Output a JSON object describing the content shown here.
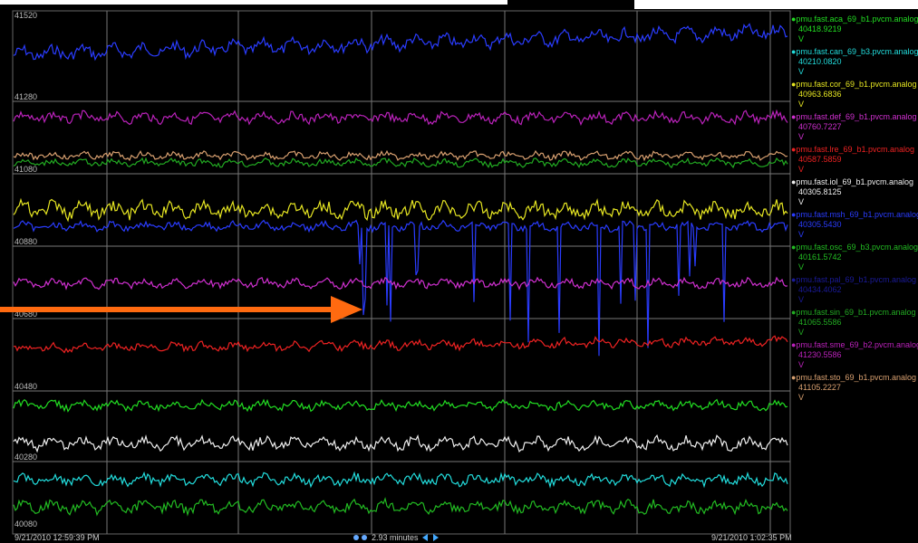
{
  "screen": {
    "y_axis_labels": [
      "41520",
      "41280",
      "41080",
      "40880",
      "40680",
      "40480",
      "40280",
      "40080"
    ],
    "legend": [
      {
        "name": "pmu.fast.aca_69_b1.pvcm.analog",
        "value": "40418.9219",
        "unit": "V",
        "color": "#22dd22"
      },
      {
        "name": "pmu.fast.can_69_b3.pvcm.analog",
        "value": "40210.0820",
        "unit": "V",
        "color": "#22dddd"
      },
      {
        "name": "pmu.fast.cor_69_b1.pvcm.analog",
        "value": "40963.6836",
        "unit": "V",
        "color": "#e6e622"
      },
      {
        "name": "pmu.fast.def_69_b1.pvcm.analog",
        "value": "40760.7227",
        "unit": "V",
        "color": "#d030d0"
      },
      {
        "name": "pmu.fast.lre_69_b1.pvcm.analog",
        "value": "40587.5859",
        "unit": "V",
        "color": "#ee2222"
      },
      {
        "name": "pmu.fast.iol_69_b1.pvcm.analog",
        "value": "40305.8125",
        "unit": "V",
        "color": "#eeeeee"
      },
      {
        "name": "pmu.fast.msh_69_b1.pvcm.analog",
        "value": "40305.5430",
        "unit": "V",
        "color": "#2a3cff"
      },
      {
        "name": "pmu.fast.osc_69_b3.pvcm.analog",
        "value": "40161.5742",
        "unit": "V",
        "color": "#22bb22"
      },
      {
        "name": "pmu.fast.pal_69_b1.pvcm.analog",
        "value": "40434.4062",
        "unit": "V",
        "color": "#1a1a99"
      },
      {
        "name": "pmu.fast.sin_69_b1.pvcm.analog",
        "value": "41065.5586",
        "unit": "V",
        "color": "#22aa22"
      },
      {
        "name": "pmu.fast.sme_69_b2.pvcm.analog",
        "value": "41230.5586",
        "unit": "V",
        "color": "#bb22bb"
      },
      {
        "name": "pmu.fast.sto_69_b1.pvcm.analog",
        "value": "41105.2227",
        "unit": "V",
        "color": "#d8a070"
      }
    ],
    "start_time": "9/21/2010 12:59:39 PM",
    "end_time": "9/21/2010 1:02:35 PM",
    "span": "2.93 minutes"
  }
}
